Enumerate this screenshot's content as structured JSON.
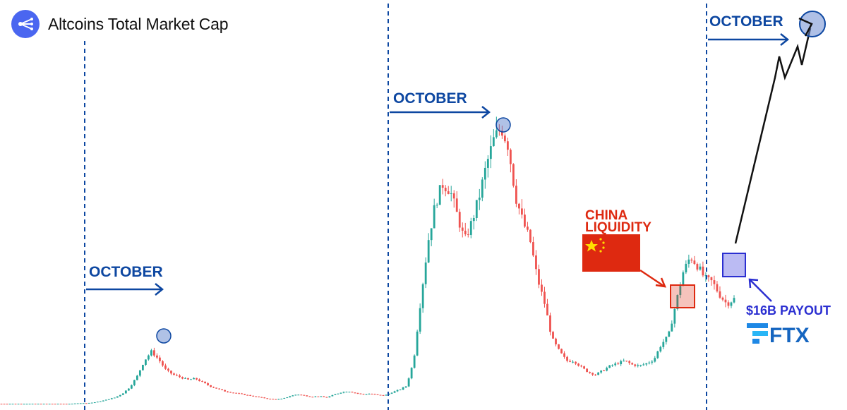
{
  "header": {
    "title": "Altcoins Total Market Cap",
    "logo_icon": "network-nodes-icon"
  },
  "chart_data": {
    "type": "candlestick",
    "title": "Altcoins Total Market Cap",
    "xlabel": "",
    "ylabel": "",
    "grid": false,
    "legend": "none",
    "series": [
      {
        "values": [
          0.02,
          0.02,
          0.02,
          0.02,
          0.02,
          0.02,
          0.02,
          0.02,
          0.02,
          0.02,
          0.02,
          0.03,
          0.03,
          0.04,
          0.06,
          0.09,
          0.12,
          0.18,
          0.28,
          0.45,
          0.7,
          0.85,
          0.72,
          0.55,
          0.48,
          0.44,
          0.4,
          0.42,
          0.36,
          0.3,
          0.26,
          0.22,
          0.2,
          0.18,
          0.16,
          0.14,
          0.12,
          0.1,
          0.09,
          0.1,
          0.14,
          0.17,
          0.15,
          0.13,
          0.14,
          0.12,
          0.16,
          0.2,
          0.22,
          0.19,
          0.17,
          0.18,
          0.16,
          0.15,
          0.2,
          0.24,
          0.3,
          0.7,
          1.7,
          2.6,
          3.2,
          3.5,
          3.4,
          3.0,
          2.6,
          2.9,
          3.3,
          3.8,
          4.2,
          4.4,
          4.1,
          3.3,
          2.9,
          2.6,
          2.0,
          1.6,
          1.05,
          0.85,
          0.7,
          0.7,
          0.6,
          0.52,
          0.48,
          0.55,
          0.62,
          0.66,
          0.7,
          0.64,
          0.62,
          0.66,
          0.72,
          0.96,
          1.1,
          1.6,
          2.1,
          2.35,
          2.2,
          2.0,
          1.95,
          1.75,
          1.6,
          1.68
        ]
      }
    ],
    "annotations": {
      "october_labels": [
        "OCTOBER",
        "OCTOBER",
        "OCTOBER"
      ],
      "china_label_line1": "CHINA",
      "china_label_line2": "LIQUIDITY",
      "payout_label": "$16B PAYOUT",
      "exchange_label": "FTX"
    },
    "colors": {
      "up": "#26a69a",
      "down": "#ef5350",
      "annotation_blue": "#0d47a1",
      "china_red": "#de2910",
      "china_yellow": "#ffde00",
      "projection": "#111111",
      "ftx_blue": "#1e88e5",
      "payout_blue": "#2b2fd1"
    }
  }
}
